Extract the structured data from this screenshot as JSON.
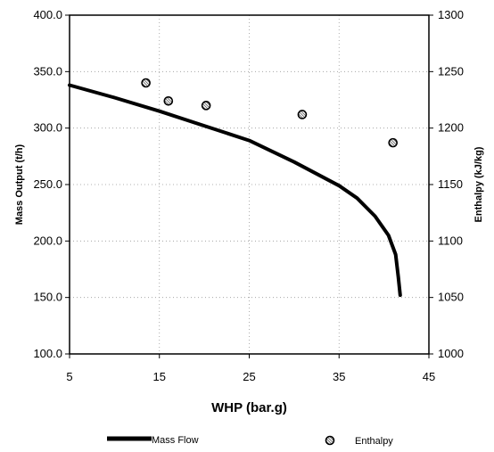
{
  "chart_data": {
    "type": "line",
    "title": "",
    "xlabel": "WHP (bar.g)",
    "ylabel_left": "Mass Output (t/h)",
    "ylabel_right": "Enthalpy (kJ/kg)",
    "xlim": [
      5,
      45
    ],
    "ylim_left": [
      100,
      400
    ],
    "ylim_right": [
      1000,
      1300
    ],
    "x_ticks": [
      "5",
      "15",
      "25",
      "35",
      "45"
    ],
    "y_left_ticks": [
      "100.0",
      "150.0",
      "200.0",
      "250.0",
      "300.0",
      "350.0",
      "400.0"
    ],
    "y_right_ticks": [
      "1000",
      "1050",
      "1100",
      "1150",
      "1200",
      "1250",
      "1300"
    ],
    "grid": true,
    "legend_position": "bottom",
    "series": [
      {
        "name": "Mass Flow",
        "axis": "left",
        "style": "line",
        "color": "#000000",
        "x": [
          5,
          10,
          15,
          20,
          25,
          30,
          35,
          37,
          39,
          40.5,
          41.3,
          41.6,
          41.8
        ],
        "y": [
          338,
          327,
          315,
          302,
          289,
          270,
          249,
          238,
          222,
          205,
          188,
          168,
          152
        ]
      },
      {
        "name": "Enthalpy",
        "axis": "right",
        "style": "marker",
        "color": "#000000",
        "x": [
          13.5,
          16,
          20.2,
          30.9,
          41
        ],
        "y": [
          1240,
          1224,
          1220,
          1212,
          1187
        ]
      }
    ]
  }
}
